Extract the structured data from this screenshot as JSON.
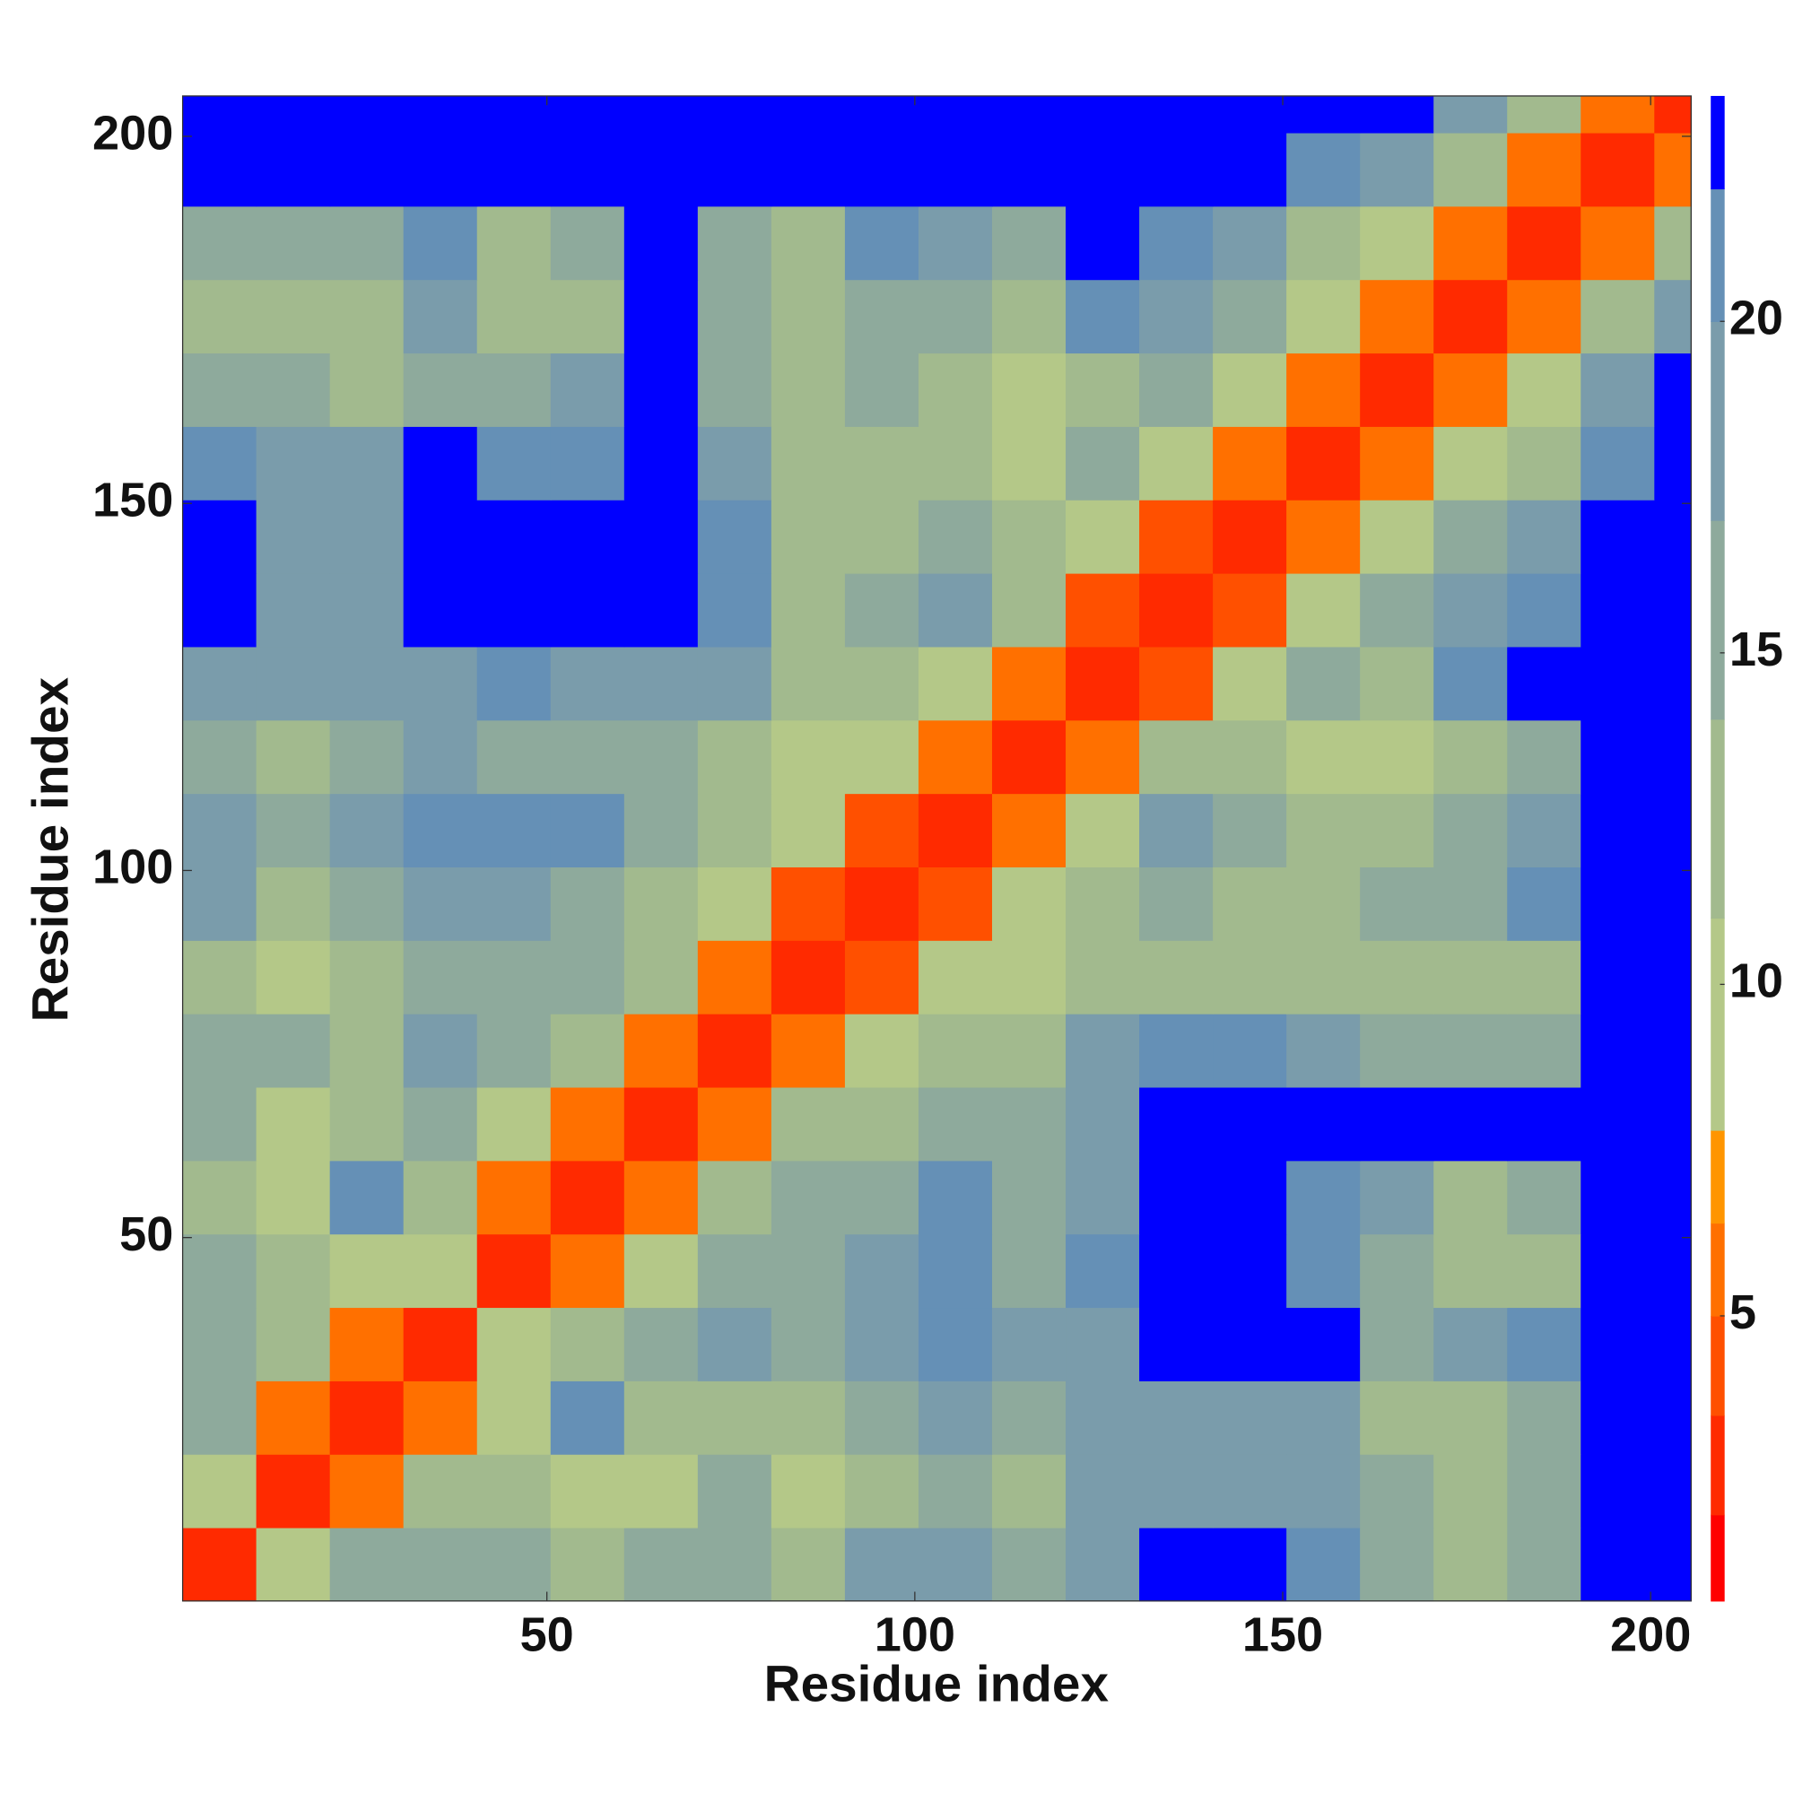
{
  "chart_data": {
    "type": "heatmap",
    "xlabel": "Residue index",
    "ylabel": "Residue index",
    "x_edges": [
      0.5,
      10.5,
      20.5,
      30.5,
      40.5,
      50.5,
      60.5,
      70.5,
      80.5,
      90.5,
      100.5,
      110.5,
      120.5,
      130.5,
      140.5,
      150.5,
      160.5,
      170.5,
      180.5,
      190.5,
      200.5,
      205.5
    ],
    "y_edges": [
      0.5,
      10.5,
      20.5,
      30.5,
      40.5,
      50.5,
      60.5,
      70.5,
      80.5,
      90.5,
      100.5,
      110.5,
      120.5,
      130.5,
      140.5,
      150.5,
      160.5,
      170.5,
      180.5,
      190.5,
      200.5,
      205.5
    ],
    "xlim": [
      0.5,
      205.5
    ],
    "ylim": [
      0.5,
      205.5
    ],
    "xticks": [
      50,
      100,
      150,
      200
    ],
    "yticks": [
      50,
      100,
      150,
      200
    ],
    "z": [
      [
        3,
        10,
        14,
        16,
        14,
        12,
        16,
        15,
        13,
        18,
        17,
        15,
        18,
        25,
        25,
        20,
        15,
        13,
        16,
        25,
        25
      ],
      [
        10,
        3,
        6,
        11,
        12,
        9,
        9,
        14,
        8,
        13,
        14,
        12,
        18,
        18,
        19,
        17,
        14,
        12,
        14,
        25,
        25
      ],
      [
        14,
        6,
        3,
        5,
        10,
        20,
        12,
        13,
        12,
        14,
        18,
        16,
        18,
        17,
        17,
        18,
        12,
        11,
        15,
        25,
        25
      ],
      [
        16,
        11,
        5,
        3,
        9,
        12,
        15,
        17,
        16,
        18,
        20,
        17,
        19,
        25,
        25,
        22,
        14,
        17,
        20,
        25,
        25
      ],
      [
        14,
        12,
        10,
        9,
        3,
        5,
        8,
        15,
        14,
        19,
        20,
        16,
        20,
        25,
        25,
        20,
        15,
        12,
        13,
        25,
        25
      ],
      [
        12,
        9,
        20,
        12,
        5,
        3,
        6,
        12,
        15,
        16,
        20,
        15,
        19,
        22,
        22,
        20,
        18,
        12,
        14,
        25,
        25
      ],
      [
        16,
        9,
        12,
        15,
        8,
        6,
        3,
        5,
        11,
        13,
        14,
        14,
        19,
        25,
        25,
        22,
        22,
        25,
        25,
        25,
        25
      ],
      [
        15,
        14,
        13,
        17,
        15,
        12,
        5,
        3,
        5,
        10,
        11,
        12,
        18,
        20,
        20,
        17,
        15,
        15,
        14,
        25,
        25
      ],
      [
        13,
        8,
        12,
        16,
        14,
        15,
        11,
        5,
        3,
        4,
        10,
        9,
        11,
        12,
        11,
        13,
        12,
        12,
        13,
        25,
        25
      ],
      [
        18,
        13,
        14,
        18,
        19,
        16,
        13,
        10,
        4,
        3,
        4,
        10,
        13,
        14,
        13,
        12,
        14,
        15,
        20,
        25,
        25
      ],
      [
        17,
        14,
        18,
        20,
        20,
        20,
        14,
        11,
        10,
        4,
        3,
        5,
        10,
        19,
        16,
        13,
        13,
        14,
        17,
        25,
        25
      ],
      [
        15,
        12,
        16,
        17,
        16,
        15,
        14,
        12,
        9,
        10,
        5,
        3,
        5,
        12,
        11,
        10,
        9,
        13,
        14,
        25,
        25
      ],
      [
        18,
        18,
        18,
        19,
        20,
        19,
        19,
        18,
        11,
        13,
        10,
        5,
        3,
        4,
        10,
        14,
        13,
        20,
        25,
        25,
        25
      ],
      [
        25,
        18,
        17,
        25,
        25,
        22,
        25,
        20,
        12,
        14,
        19,
        12,
        4,
        3,
        4,
        10,
        15,
        17,
        20,
        25,
        25
      ],
      [
        25,
        19,
        17,
        25,
        25,
        22,
        25,
        20,
        11,
        13,
        16,
        11,
        10,
        4,
        3,
        5,
        10,
        14,
        17,
        25,
        25
      ],
      [
        20,
        17,
        18,
        22,
        20,
        20,
        22,
        17,
        13,
        12,
        13,
        10,
        14,
        10,
        5,
        3,
        5,
        9,
        13,
        20,
        25
      ],
      [
        15,
        14,
        12,
        14,
        15,
        18,
        22,
        15,
        12,
        14,
        13,
        9,
        13,
        15,
        10,
        5,
        3,
        5,
        10,
        17,
        25
      ],
      [
        13,
        12,
        11,
        17,
        12,
        12,
        25,
        15,
        12,
        15,
        14,
        13,
        20,
        17,
        14,
        9,
        5,
        3,
        5,
        11,
        17
      ],
      [
        16,
        14,
        15,
        20,
        13,
        14,
        25,
        14,
        13,
        20,
        17,
        14,
        25,
        20,
        17,
        13,
        10,
        5,
        3,
        5,
        12
      ],
      [
        25,
        25,
        25,
        25,
        25,
        25,
        25,
        25,
        25,
        25,
        25,
        25,
        25,
        25,
        25,
        20,
        17,
        11,
        5,
        3,
        6
      ],
      [
        25,
        25,
        25,
        25,
        25,
        25,
        25,
        25,
        25,
        25,
        25,
        25,
        25,
        25,
        25,
        25,
        25,
        17,
        12,
        6,
        3
      ]
    ],
    "clim": [
      0.7,
      23.4
    ],
    "cticks": [
      5,
      10,
      15,
      20
    ],
    "color_bounds": [
      2,
      3.5,
      5,
      6.4,
      7.8,
      11,
      14,
      17,
      20,
      22
    ],
    "colors": [
      "#ff0000",
      "#ff2a00",
      "#ff5000",
      "#ff7000",
      "#ff9500",
      "#b4c888",
      "#a2ba8e",
      "#8eaa9c",
      "#7a9cab",
      "#6590b6",
      "#0000ff"
    ]
  }
}
